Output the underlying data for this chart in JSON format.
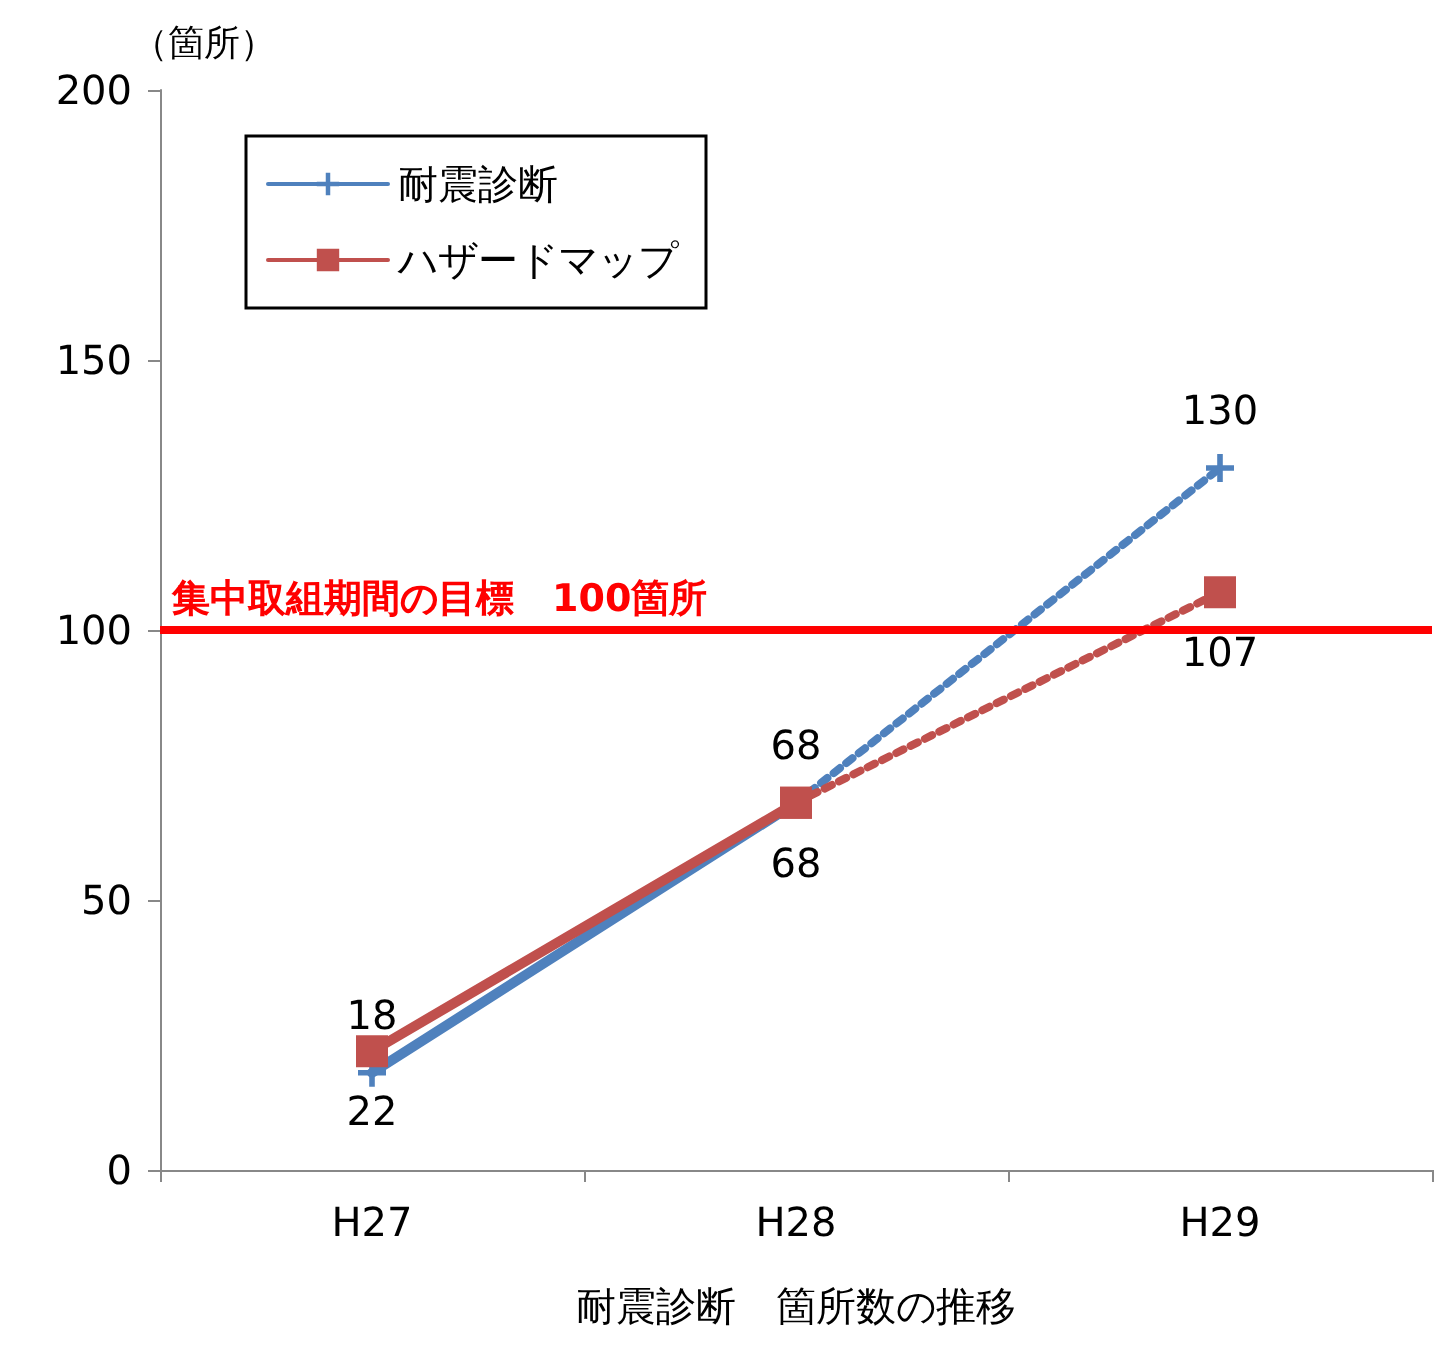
{
  "chart_data": {
    "type": "line",
    "xlabel": "耐震診断　箇所数の推移",
    "ylabel": "（箇所）",
    "categories": [
      "H27",
      "H28",
      "H29"
    ],
    "series": [
      {
        "name": "耐震診断",
        "color": "#4f81bd",
        "values": [
          18,
          68,
          null
        ],
        "value_labels": [
          "18",
          "68",
          null
        ],
        "marker": "cross",
        "line_style": "solid"
      },
      {
        "name": "ハザードマップ",
        "color": "#c0504d",
        "values": [
          22,
          68,
          null
        ],
        "value_labels": [
          "22",
          "68",
          null
        ],
        "marker": "square",
        "line_style": "solid"
      },
      {
        "color": "#4f81bd",
        "values": [
          null,
          68,
          130
        ],
        "value_labels": [
          null,
          null,
          "130"
        ],
        "marker": "cross",
        "line_style": "dotted"
      },
      {
        "color": "#c0504d",
        "values": [
          null,
          68,
          107
        ],
        "value_labels": [
          null,
          null,
          "107"
        ],
        "marker": "square",
        "line_style": "dotted"
      }
    ],
    "ylim": [
      0,
      200
    ],
    "yticks": [
      0,
      50,
      100,
      150,
      200
    ],
    "grid": false,
    "legend": "top left",
    "ref_lines": [
      {
        "axis": "y",
        "value": 100,
        "label": "集中取組期間の目標　100箇所",
        "color": "#ff0000"
      }
    ]
  }
}
